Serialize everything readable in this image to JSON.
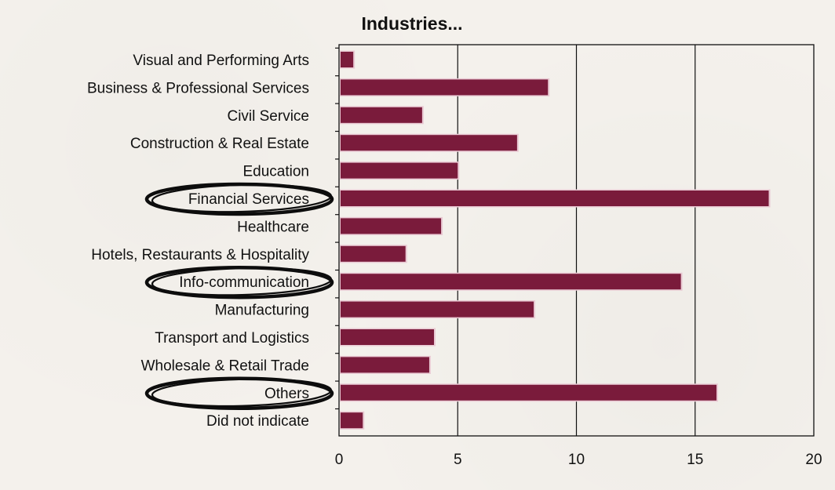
{
  "chart_data": {
    "type": "bar",
    "orientation": "horizontal",
    "title": "Industries...",
    "xlabel": "",
    "ylabel": "",
    "categories": [
      "Visual and Performing Arts",
      "Business & Professional Services",
      "Civil Service",
      "Construction & Real Estate",
      "Education",
      "Financial Services",
      "Healthcare",
      "Hotels, Restaurants & Hospitality",
      "Info-communication",
      "Manufacturing",
      "Transport and Logistics",
      "Wholesale & Retail Trade",
      "Others",
      "Did not indicate"
    ],
    "values": [
      0.6,
      8.8,
      3.5,
      7.5,
      5.0,
      18.1,
      4.3,
      2.8,
      14.4,
      8.2,
      4.0,
      3.8,
      15.9,
      1.0
    ],
    "xlim": [
      0,
      20
    ],
    "xticks": [
      "0",
      "5",
      "10",
      "15",
      "20"
    ],
    "grid": "vertical",
    "bar_color": "#7a1b3b",
    "circled_categories": [
      "Financial Services",
      "Info-communication",
      "Others"
    ]
  }
}
